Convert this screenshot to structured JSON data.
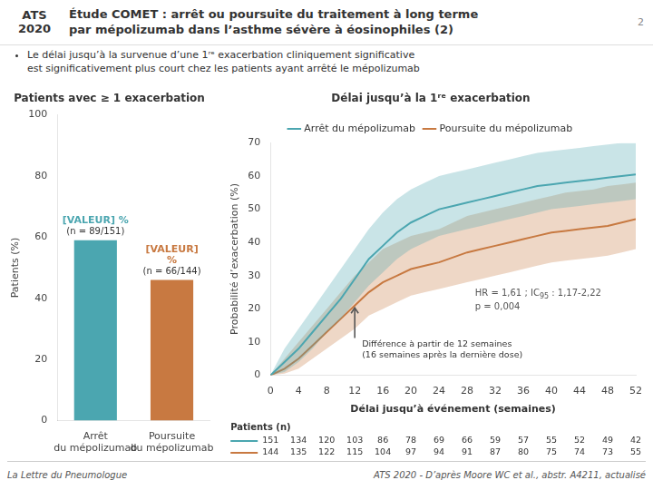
{
  "title": "Étude COMET : arrêt ou poursuite du traitement à long terme\npar mépolizumab dans l’asthme sévère à éosinophiles (2)",
  "subtitle": "Le délai jusqu’à la survenue d’une 1ʳᵉ exacerbation cliniquement significative\nest significativement plus court chez les patients ayant arrêté le mépolizumab",
  "annotations": [
    "ATS\n2020",
    "2",
    "La Lettre du Pneumologue",
    "ATS 2020 - D’après Moore WC et al., abstr. A4211, actualisé"
  ],
  "chart_data": [
    {
      "type": "bar",
      "title": "Patients avec ≥ 1 exacerbation",
      "categories": [
        "Arrêt\ndu mépolizumab",
        "Poursuite\ndu mépolizumab"
      ],
      "values": [
        59,
        46
      ],
      "colors": [
        "#4BA6B0",
        "#C87941"
      ],
      "y_label": "Patients (%)",
      "ylim": [
        0,
        100
      ],
      "yticks": [
        0,
        20,
        40,
        60,
        80,
        100
      ],
      "grid": false,
      "data_labels": true,
      "value_labels": [
        "[VALEUR] %\n(n = 89/151)",
        "[VALEUR]\n%\n(n = 66/144)"
      ]
    },
    {
      "type": "line",
      "title": "Délai jusqu’à la 1ʳᵉ exacerbation",
      "x_label": "Délai jusqu’à événement (semaines)",
      "y_label": "Probabilité d’exacerbation (%)",
      "x": [
        0,
        2,
        4,
        6,
        8,
        10,
        12,
        14,
        16,
        18,
        20,
        22,
        24,
        26,
        28,
        30,
        32,
        34,
        36,
        38,
        40,
        42,
        44,
        46,
        48,
        50,
        52
      ],
      "xlim": [
        0,
        52
      ],
      "xticks": [
        0,
        4,
        8,
        12,
        16,
        20,
        24,
        28,
        32,
        36,
        40,
        44,
        48,
        52
      ],
      "ylim": [
        0,
        70
      ],
      "yticks": [
        0,
        10,
        20,
        30,
        40,
        50,
        60,
        70
      ],
      "grid": false,
      "legend": "top",
      "series": [
        {
          "name": "Arrêt du mépolizumab",
          "color": "#4BA6B0",
          "values": [
            0,
            4,
            8,
            13,
            18,
            23,
            29,
            35,
            39,
            43,
            46,
            48,
            50,
            51,
            52,
            53,
            54,
            55,
            56,
            57,
            57.5,
            58,
            58.5,
            59,
            59.5,
            60,
            60.5
          ],
          "lower": [
            0,
            1,
            4,
            8,
            13,
            17,
            22,
            27,
            31,
            35,
            38,
            40,
            42,
            43,
            44,
            45,
            46,
            47,
            48,
            49,
            50,
            50.5,
            51,
            51.5,
            52,
            52.5,
            53
          ],
          "upper": [
            0,
            8,
            14,
            20,
            26,
            32,
            38,
            44,
            49,
            53,
            56,
            58,
            60,
            61,
            62,
            63,
            64,
            65,
            66,
            67,
            67.5,
            68,
            68.5,
            69,
            69.5,
            70,
            70
          ],
          "at_risk": [
            151,
            134,
            120,
            103,
            86,
            78,
            69,
            66,
            59,
            57,
            55,
            52,
            49,
            42
          ]
        },
        {
          "name": "Poursuite du mépolizumab",
          "color": "#C87941",
          "values": [
            0,
            2,
            5,
            9,
            13,
            17,
            21,
            25,
            28,
            30,
            32,
            33,
            34,
            35.5,
            37,
            38,
            39,
            40,
            41,
            42,
            43,
            43.5,
            44,
            44.5,
            45,
            46,
            47
          ],
          "lower": [
            0,
            0.5,
            2,
            5,
            8,
            11,
            14,
            18,
            20,
            22,
            24,
            25,
            26,
            27,
            28,
            29,
            30,
            31,
            32,
            33,
            34,
            34.5,
            35,
            35.5,
            36,
            37,
            38
          ],
          "upper": [
            0,
            5,
            10,
            15,
            20,
            25,
            30,
            34,
            38,
            40,
            42,
            43,
            44,
            46,
            48,
            49,
            50,
            51,
            52,
            53,
            54,
            55,
            55.5,
            56,
            57,
            57.5,
            58
          ],
          "at_risk": [
            144,
            135,
            122,
            115,
            104,
            97,
            94,
            91,
            87,
            80,
            75,
            74,
            73,
            55
          ]
        }
      ],
      "at_risk_title": "Patients (n)",
      "annotations": [
        {
          "text": "Différence à partir de 12 semaines\n(16 semaines après la dernière dose)",
          "x": 12
        },
        {
          "text": "HR = 1,61 ; IC",
          "subscript": "95",
          "text_after": " : 1,17-2,22"
        },
        {
          "text": "p = 0,004"
        }
      ]
    }
  ]
}
